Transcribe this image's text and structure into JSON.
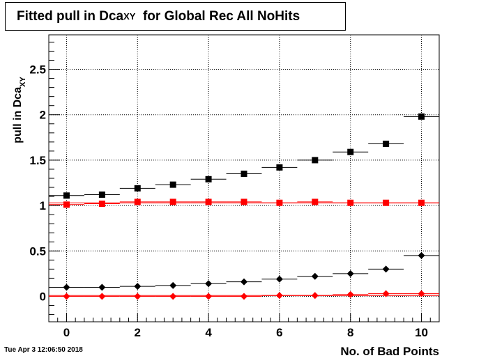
{
  "title": {
    "main": "Fitted pull in Dca",
    "subscript": "XY",
    "suffix": "for Global Rec All NoHits"
  },
  "timestamp": "Tue Apr  3 12:06:50 2018",
  "chart_data": {
    "type": "scatter",
    "title": "Fitted pull in Dca_XY for Global Rec All NoHits",
    "xlabel": "No. of Bad Points",
    "ylabel": {
      "main": "pull in Dca",
      "subscript": "XY"
    },
    "xlim": [
      -0.5,
      10.5
    ],
    "ylim": [
      -0.28,
      2.88
    ],
    "x_ticks": [
      "0",
      "2",
      "4",
      "6",
      "8",
      "10"
    ],
    "x_tick_values": [
      0,
      2,
      4,
      6,
      8,
      10
    ],
    "y_ticks": [
      "0",
      "0.5",
      "1",
      "1.5",
      "2",
      "2.5"
    ],
    "y_tick_values": [
      0,
      0.5,
      1,
      1.5,
      2,
      2.5
    ],
    "grid": true,
    "x": [
      0,
      1,
      2,
      3,
      4,
      5,
      6,
      7,
      8,
      9,
      10
    ],
    "series": [
      {
        "color": "#000000",
        "marker": "square",
        "values": [
          1.11,
          1.12,
          1.19,
          1.23,
          1.29,
          1.35,
          1.42,
          1.5,
          1.59,
          1.68,
          1.98
        ]
      },
      {
        "color": "#ff0000",
        "marker": "square",
        "values": [
          1.01,
          1.02,
          1.04,
          1.04,
          1.04,
          1.04,
          1.03,
          1.04,
          1.03,
          1.03,
          1.03
        ]
      },
      {
        "color": "#000000",
        "marker": "diamond",
        "values": [
          0.1,
          0.1,
          0.11,
          0.12,
          0.14,
          0.16,
          0.19,
          0.22,
          0.25,
          0.3,
          0.45
        ]
      },
      {
        "color": "#ff0000",
        "marker": "diamond",
        "values": [
          0.0,
          0.0,
          0.0,
          0.0,
          0.0,
          0.0,
          0.01,
          0.01,
          0.02,
          0.03,
          0.03
        ]
      }
    ],
    "fit_lines": [
      {
        "color": "#ff0000",
        "y": 1.03
      },
      {
        "color": "#ff0000",
        "y": 0.01
      }
    ]
  }
}
